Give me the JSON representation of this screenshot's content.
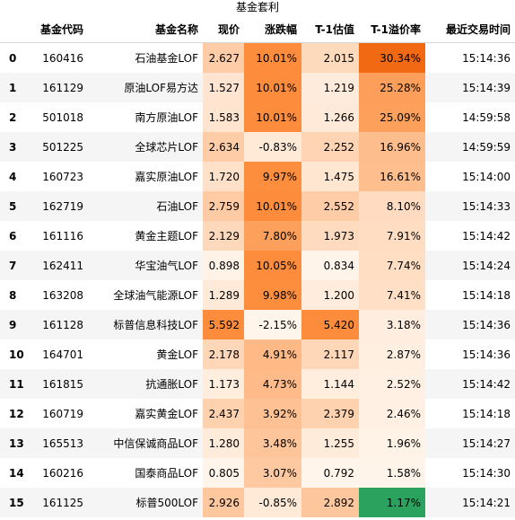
{
  "caption": "基金套利",
  "headers": {
    "code": "基金代码",
    "name": "基金名称",
    "price": "现价",
    "change": "涨跌幅",
    "estimate": "T-1估值",
    "premium": "T-1溢价率",
    "time": "最近交易时间"
  },
  "colors": {
    "heat_low": "#fff5eb",
    "heat_high": "#fd8d3c",
    "premium_high": "#f16913",
    "premium_best": "#2ca25f"
  },
  "rows": [
    {
      "idx": "0",
      "code": "160416",
      "name": "石油基金LOF",
      "price": "2.627",
      "change": "10.01%",
      "estimate": "2.015",
      "premium": "30.34%",
      "time": "15:14:36"
    },
    {
      "idx": "1",
      "code": "161129",
      "name": "原油LOF易方达",
      "price": "1.527",
      "change": "10.01%",
      "estimate": "1.219",
      "premium": "25.28%",
      "time": "15:14:39"
    },
    {
      "idx": "2",
      "code": "501018",
      "name": "南方原油LOF",
      "price": "1.583",
      "change": "10.01%",
      "estimate": "1.266",
      "premium": "25.09%",
      "time": "14:59:58"
    },
    {
      "idx": "3",
      "code": "501225",
      "name": "全球芯片LOF",
      "price": "2.634",
      "change": "-0.83%",
      "estimate": "2.252",
      "premium": "16.96%",
      "time": "14:59:59"
    },
    {
      "idx": "4",
      "code": "160723",
      "name": "嘉实原油LOF",
      "price": "1.720",
      "change": "9.97%",
      "estimate": "1.475",
      "premium": "16.61%",
      "time": "15:14:00"
    },
    {
      "idx": "5",
      "code": "162719",
      "name": "石油LOF",
      "price": "2.759",
      "change": "10.01%",
      "estimate": "2.552",
      "premium": "8.10%",
      "time": "15:14:33"
    },
    {
      "idx": "6",
      "code": "161116",
      "name": "黄金主题LOF",
      "price": "2.129",
      "change": "7.80%",
      "estimate": "1.973",
      "premium": "7.91%",
      "time": "15:14:42"
    },
    {
      "idx": "7",
      "code": "162411",
      "name": "华宝油气LOF",
      "price": "0.898",
      "change": "10.05%",
      "estimate": "0.834",
      "premium": "7.74%",
      "time": "15:14:24"
    },
    {
      "idx": "8",
      "code": "163208",
      "name": "全球油气能源LOF",
      "price": "1.289",
      "change": "9.98%",
      "estimate": "1.200",
      "premium": "7.41%",
      "time": "15:14:18"
    },
    {
      "idx": "9",
      "code": "161128",
      "name": "标普信息科技LOF",
      "price": "5.592",
      "change": "-2.15%",
      "estimate": "5.420",
      "premium": "3.18%",
      "time": "15:14:36"
    },
    {
      "idx": "10",
      "code": "164701",
      "name": "黄金LOF",
      "price": "2.178",
      "change": "4.91%",
      "estimate": "2.117",
      "premium": "2.87%",
      "time": "15:14:36"
    },
    {
      "idx": "11",
      "code": "161815",
      "name": "抗通胀LOF",
      "price": "1.173",
      "change": "4.73%",
      "estimate": "1.144",
      "premium": "2.52%",
      "time": "15:14:42"
    },
    {
      "idx": "12",
      "code": "160719",
      "name": "嘉实黄金LOF",
      "price": "2.437",
      "change": "3.92%",
      "estimate": "2.379",
      "premium": "2.46%",
      "time": "15:14:18"
    },
    {
      "idx": "13",
      "code": "165513",
      "name": "中信保诚商品LOF",
      "price": "1.280",
      "change": "3.48%",
      "estimate": "1.255",
      "premium": "1.96%",
      "time": "15:14:27"
    },
    {
      "idx": "14",
      "code": "160216",
      "name": "国泰商品LOF",
      "price": "0.805",
      "change": "3.07%",
      "estimate": "0.792",
      "premium": "1.58%",
      "time": "15:14:30"
    },
    {
      "idx": "15",
      "code": "161125",
      "name": "标普500LOF",
      "price": "2.926",
      "change": "-0.85%",
      "estimate": "2.892",
      "premium": "1.17%",
      "time": "15:14:21"
    }
  ]
}
